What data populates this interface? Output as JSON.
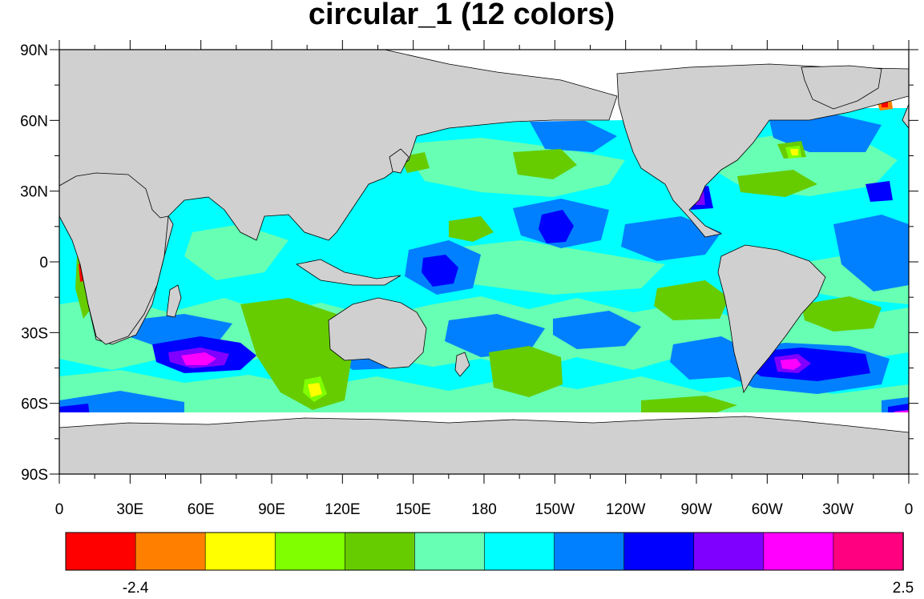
{
  "title": "circular_1 (12 colors)",
  "map": {
    "projection": "cylindrical-equidistant",
    "lon_range": [
      0,
      360
    ],
    "lat_range": [
      -90,
      90
    ],
    "land_color": "#d0d0d0",
    "missing_color": "#ffffff",
    "lat_ticks": [
      {
        "value": 90,
        "label": "90N"
      },
      {
        "value": 60,
        "label": "60N"
      },
      {
        "value": 30,
        "label": "30N"
      },
      {
        "value": 0,
        "label": "0"
      },
      {
        "value": -30,
        "label": "30S"
      },
      {
        "value": -60,
        "label": "60S"
      },
      {
        "value": -90,
        "label": "90S"
      }
    ],
    "lon_ticks": [
      {
        "value": 0,
        "label": "0"
      },
      {
        "value": 30,
        "label": "30E"
      },
      {
        "value": 60,
        "label": "60E"
      },
      {
        "value": 90,
        "label": "90E"
      },
      {
        "value": 120,
        "label": "120E"
      },
      {
        "value": 150,
        "label": "150E"
      },
      {
        "value": 180,
        "label": "180"
      },
      {
        "value": 210,
        "label": "150W"
      },
      {
        "value": 240,
        "label": "120W"
      },
      {
        "value": 270,
        "label": "90W"
      },
      {
        "value": 300,
        "label": "60W"
      },
      {
        "value": 330,
        "label": "30W"
      },
      {
        "value": 360,
        "label": "0"
      }
    ]
  },
  "colorbar": {
    "colors": [
      "#ff0000",
      "#ff8000",
      "#ffff00",
      "#80ff00",
      "#66cc00",
      "#66ffb3",
      "#00ffff",
      "#0080ff",
      "#0000ff",
      "#8000ff",
      "#ff00ff",
      "#ff0080"
    ],
    "labels": [
      {
        "box_index": 1,
        "text": "-2.4"
      },
      {
        "box_index": 12,
        "text": "2.5"
      }
    ]
  }
}
